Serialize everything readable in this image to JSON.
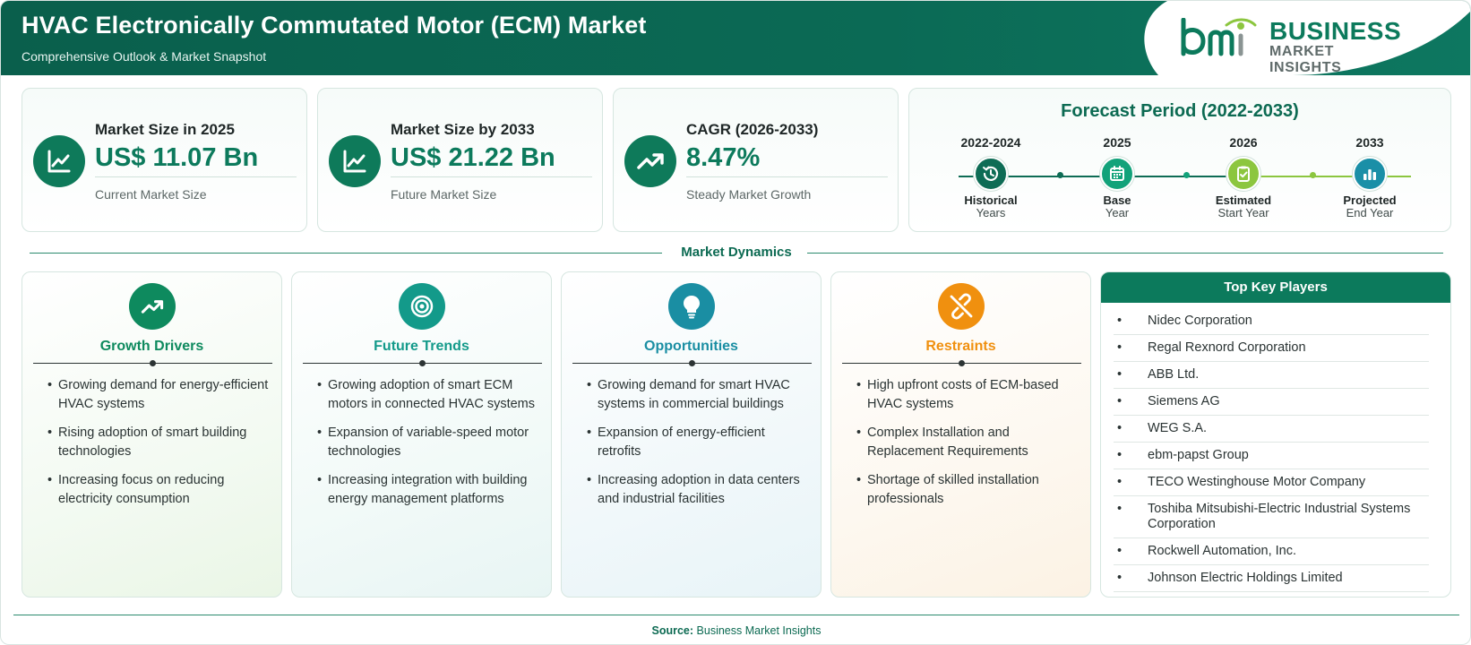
{
  "header": {
    "title": "HVAC Electronically Commutated Motor (ECM) Market",
    "subtitle": "Comprehensive Outlook & Market Snapshot",
    "logo": {
      "line1": "BUSINESS",
      "line2": "MARKET INSIGHTS",
      "mark": "bmi"
    }
  },
  "stats": [
    {
      "label": "Market Size in 2025",
      "value": "US$ 11.07 Bn",
      "desc": "Current Market Size",
      "icon": "line-chart-icon"
    },
    {
      "label": "Market Size by 2033",
      "value": "US$ 21.22 Bn",
      "desc": "Future Market Size",
      "icon": "line-chart-icon"
    },
    {
      "label": "CAGR (2026-2033)",
      "value": "8.47%",
      "desc": "Steady Market Growth",
      "icon": "trend-up-icon"
    }
  ],
  "forecast": {
    "title": "Forecast Period (2022-2033)",
    "items": [
      {
        "year": "2022-2024",
        "label1": "Historical",
        "label2": "Years",
        "color": "#0e6c55",
        "icon": "history-icon"
      },
      {
        "year": "2025",
        "label1": "Base",
        "label2": "Year",
        "color": "#12a27a",
        "icon": "calendar-icon"
      },
      {
        "year": "2026",
        "label1": "Estimated",
        "label2": "Start Year",
        "color": "#8cc63f",
        "icon": "clipboard-check-icon"
      },
      {
        "year": "2033",
        "label1": "Projected",
        "label2": "End Year",
        "color": "#1a8fa7",
        "icon": "bar-chart-icon"
      }
    ]
  },
  "dynamics": {
    "title": "Market Dynamics",
    "cards": [
      {
        "title": "Growth Drivers",
        "color": "#0e8a5e",
        "icon": "trend-up-icon",
        "bg": "linear-gradient(160deg, #ffffff 0%, #f3faf2 60%, #eaf6e6 100%)",
        "items": [
          "Growing demand for energy-efficient HVAC systems",
          "Rising adoption of smart building technologies",
          "Increasing focus on reducing electricity consumption"
        ]
      },
      {
        "title": "Future Trends",
        "color": "#139a8a",
        "icon": "target-icon",
        "bg": "linear-gradient(160deg, #ffffff 0%, #f2faf8 60%, #e8f5f4 100%)",
        "items": [
          "Growing adoption of smart ECM motors in connected HVAC systems",
          "Expansion of variable-speed motor technologies",
          "Increasing integration with building energy management platforms"
        ]
      },
      {
        "title": "Opportunities",
        "color": "#1a8ea3",
        "icon": "lightbulb-icon",
        "bg": "linear-gradient(160deg, #ffffff 0%, #f1f8fa 60%, #e8f4f8 100%)",
        "items": [
          "Growing demand for smart HVAC systems in commercial buildings",
          "Expansion of energy-efficient retrofits",
          "Increasing adoption in data centers and industrial facilities"
        ]
      },
      {
        "title": "Restraints",
        "color": "#f0900f",
        "icon": "broken-link-icon",
        "bg": "linear-gradient(160deg, #ffffff 0%, #fdf8f0 60%, #fcf2e4 100%)",
        "items": [
          "High upfront costs of ECM-based HVAC systems",
          "Complex Installation and Replacement Requirements",
          "Shortage of skilled installation professionals"
        ]
      }
    ]
  },
  "key_players": {
    "title": "Top Key Players",
    "items": [
      "Nidec Corporation",
      "Regal Rexnord Corporation",
      "ABB Ltd.",
      "Siemens AG",
      "WEG S.A.",
      "ebm-papst Group",
      "TECO Westinghouse Motor Company",
      "Toshiba Mitsubishi-Electric Industrial Systems Corporation",
      "Rockwell Automation, Inc.",
      "Johnson Electric Holdings Limited"
    ]
  },
  "footer": {
    "source_label": "Source:",
    "source_value": "Business Market Insights"
  }
}
